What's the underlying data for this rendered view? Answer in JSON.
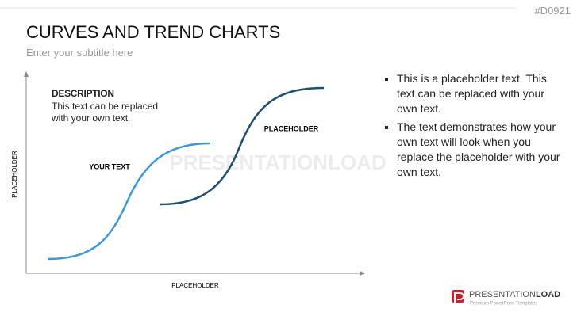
{
  "header": {
    "code": "#D0921",
    "title": "CURVES AND TREND CHARTS",
    "subtitle": "Enter your subtitle here"
  },
  "diagram": {
    "description_title": "DESCRIPTION",
    "description_text": "This text can be replaced with your own text.",
    "label_lower": "YOUR TEXT",
    "label_upper": "PLACEHOLDER",
    "y_axis_label": "PLACEHOLDER",
    "x_axis_label": "PLACEHOLDER",
    "watermark": "PRESENTATIONLOAD"
  },
  "bullets": [
    "This is a placeholder text. This text can be replaced with your own text.",
    "The text demonstrates how your own text will look when you replace the placeholder with your own text."
  ],
  "logo": {
    "brand_light": "PRESENTATION",
    "brand_bold": "LOAD",
    "tagline": "Premium PowerPoint Templates"
  }
}
